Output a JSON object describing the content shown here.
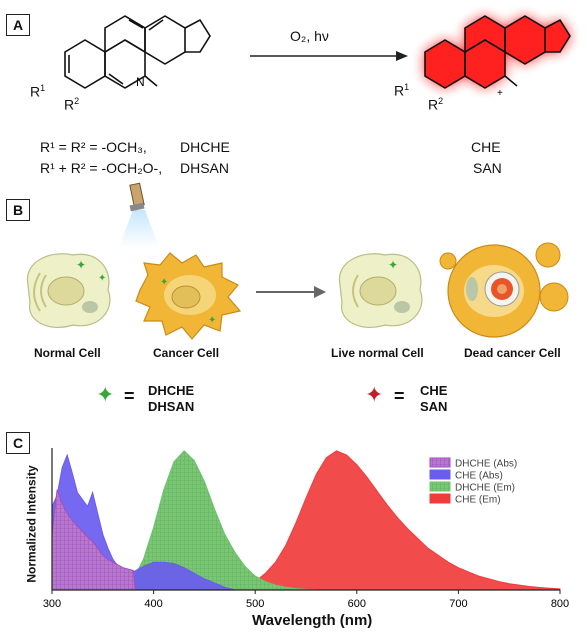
{
  "panel_a": {
    "label": "A",
    "reaction": "O₂, hν",
    "substituent_r1": "R",
    "substituent_r1_sup": "1",
    "substituent_r2": "R",
    "substituent_r2_sup": "2",
    "n_plus": "+",
    "methyl_n": "N",
    "row1_formula": "R¹ = R² = -OCH₃,",
    "row1_name": "DHCHE",
    "row1_product": "CHE",
    "row2_formula": "R¹ + R² = -OCH₂O-,",
    "row2_name": "DHSAN",
    "row2_product": "SAN"
  },
  "panel_b": {
    "label": "B",
    "cells": [
      "Normal Cell",
      "Cancer Cell",
      "Live normal Cell",
      "Dead cancer Cell"
    ],
    "legend_left": [
      "DHCHE",
      "DHSAN"
    ],
    "legend_right": [
      "CHE",
      "SAN"
    ],
    "equals": "=",
    "colors": {
      "green_marker": "#3aa63a",
      "red_marker": "#c0202a",
      "cancer_cell": "#f2b636",
      "normal_cell": "#eef0c8"
    }
  },
  "panel_c": {
    "label": "C"
  },
  "chart_data": {
    "type": "area",
    "xlabel": "Wavelength (nm)",
    "ylabel": "Normalized Intensity",
    "xlim": [
      300,
      800
    ],
    "ylim": [
      0,
      1.02
    ],
    "xticks": [
      "300",
      "400",
      "500",
      "600",
      "700",
      "800"
    ],
    "legend_position": "top-right",
    "grid": false,
    "series": [
      {
        "name": "DHCHE (Abs)",
        "color": "#a34dbf",
        "x": [
          300,
          305,
          310,
          315,
          320,
          325,
          330,
          335,
          340,
          345,
          350,
          355,
          360,
          365,
          370,
          375,
          380,
          382
        ],
        "y": [
          0.4,
          0.72,
          0.62,
          0.55,
          0.5,
          0.46,
          0.42,
          0.38,
          0.35,
          0.3,
          0.25,
          0.22,
          0.2,
          0.18,
          0.16,
          0.15,
          0.14,
          0.0
        ]
      },
      {
        "name": "CHE (Abs)",
        "color": "#6a5cf0",
        "x": [
          300,
          305,
          310,
          315,
          320,
          325,
          330,
          335,
          340,
          345,
          350,
          355,
          360,
          365,
          370,
          375,
          380,
          390,
          400,
          410,
          420,
          430,
          440,
          450,
          460,
          470,
          475,
          480
        ],
        "y": [
          0.6,
          0.68,
          0.88,
          0.97,
          0.84,
          0.7,
          0.65,
          0.6,
          0.7,
          0.55,
          0.4,
          0.3,
          0.22,
          0.17,
          0.14,
          0.12,
          0.13,
          0.17,
          0.2,
          0.2,
          0.19,
          0.16,
          0.12,
          0.08,
          0.05,
          0.02,
          0.01,
          0.0
        ]
      },
      {
        "name": "DHCHE (Em)",
        "color": "#6cc46a",
        "x": [
          360,
          370,
          380,
          390,
          400,
          410,
          420,
          430,
          440,
          450,
          460,
          470,
          480,
          490,
          500,
          510,
          520,
          530,
          540,
          550,
          560
        ],
        "y": [
          0.0,
          0.02,
          0.08,
          0.22,
          0.45,
          0.72,
          0.92,
          1.0,
          0.93,
          0.78,
          0.58,
          0.4,
          0.27,
          0.17,
          0.1,
          0.06,
          0.035,
          0.02,
          0.01,
          0.005,
          0.0
        ]
      },
      {
        "name": "CHE (Em)",
        "color": "#f03c3c",
        "x": [
          470,
          480,
          490,
          500,
          510,
          520,
          530,
          540,
          550,
          560,
          570,
          580,
          590,
          600,
          610,
          620,
          630,
          640,
          650,
          660,
          670,
          680,
          690,
          700,
          710,
          720,
          730,
          740,
          750,
          760,
          770,
          780,
          790,
          800
        ],
        "y": [
          0.0,
          0.01,
          0.03,
          0.06,
          0.12,
          0.2,
          0.32,
          0.48,
          0.66,
          0.83,
          0.95,
          1.0,
          0.97,
          0.9,
          0.81,
          0.71,
          0.61,
          0.52,
          0.44,
          0.37,
          0.3,
          0.25,
          0.2,
          0.16,
          0.13,
          0.1,
          0.08,
          0.06,
          0.045,
          0.035,
          0.025,
          0.018,
          0.012,
          0.008
        ]
      }
    ]
  }
}
